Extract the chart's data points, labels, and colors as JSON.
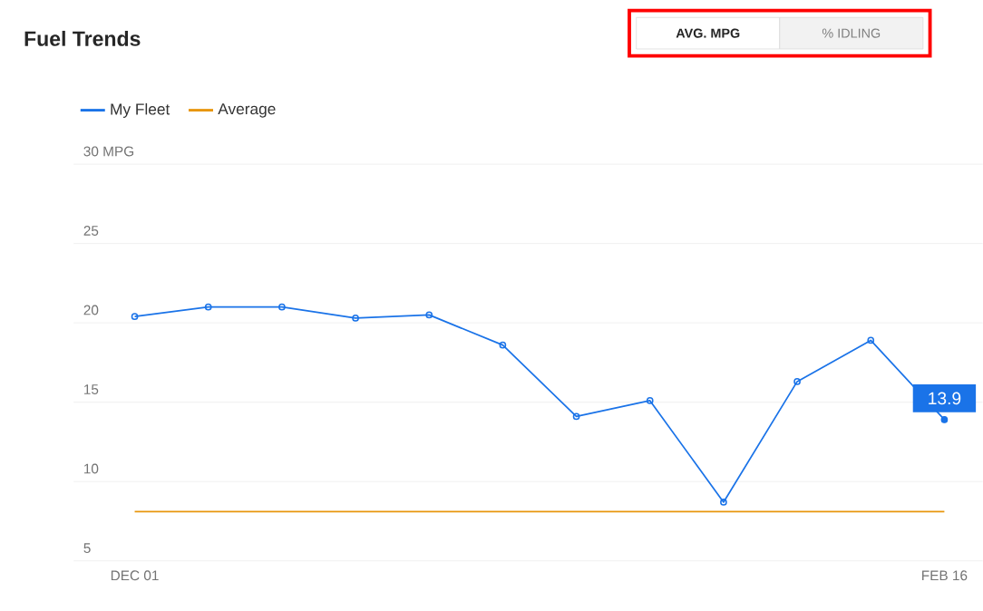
{
  "chart_data": {
    "type": "line",
    "title": "Fuel Trends",
    "categories": [
      "DEC 01",
      null,
      null,
      null,
      null,
      null,
      null,
      null,
      null,
      null,
      null,
      "FEB 16"
    ],
    "series": [
      {
        "name": "My Fleet",
        "color": "#1a73e8",
        "marker": "circle",
        "values": [
          20.4,
          21.0,
          21.0,
          20.3,
          20.5,
          18.6,
          14.1,
          15.1,
          8.7,
          16.3,
          18.9,
          13.9
        ],
        "value_labels": [
          null,
          null,
          null,
          null,
          null,
          null,
          null,
          null,
          null,
          null,
          null,
          "13.9"
        ]
      },
      {
        "name": "Average",
        "color": "#e8960c",
        "marker": "none",
        "values": [
          8.1,
          8.1,
          8.1,
          8.1,
          8.1,
          8.1,
          8.1,
          8.1,
          8.1,
          8.1,
          8.1,
          8.1
        ]
      }
    ],
    "ylim": [
      5,
      30
    ],
    "yticks": [
      5,
      10,
      15,
      20,
      25,
      {
        "value": 30,
        "label": "30 MPG"
      }
    ],
    "grid": "y",
    "legend": "top left",
    "line_style": "solid",
    "annotations": [
      "AVG. MPG",
      "% IDLING"
    ]
  }
}
